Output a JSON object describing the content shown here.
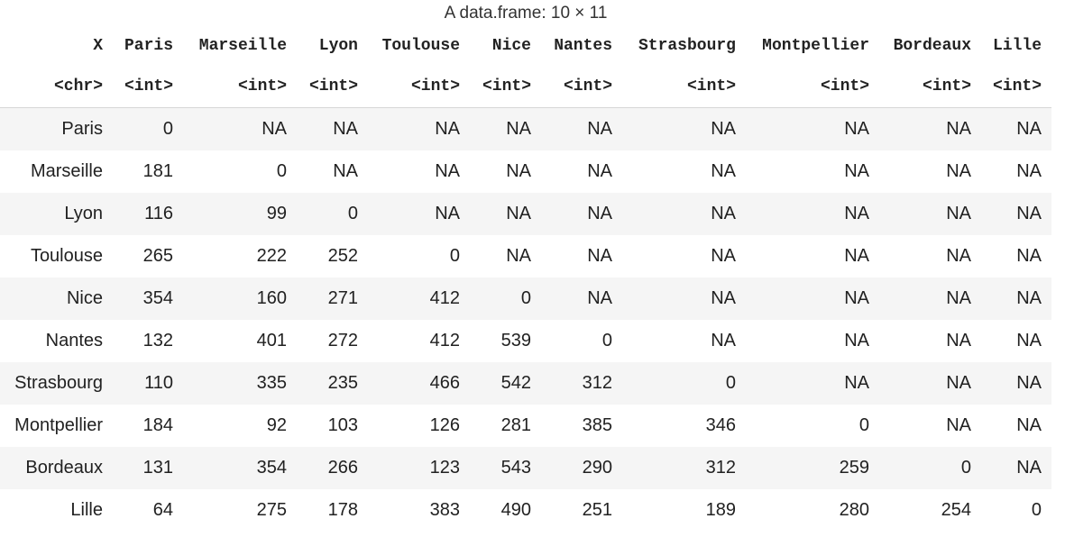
{
  "caption": "A data.frame: 10 × 11",
  "columns": [
    {
      "name": "X",
      "type": "<chr>"
    },
    {
      "name": "Paris",
      "type": "<int>"
    },
    {
      "name": "Marseille",
      "type": "<int>"
    },
    {
      "name": "Lyon",
      "type": "<int>"
    },
    {
      "name": "Toulouse",
      "type": "<int>"
    },
    {
      "name": "Nice",
      "type": "<int>"
    },
    {
      "name": "Nantes",
      "type": "<int>"
    },
    {
      "name": "Strasbourg",
      "type": "<int>"
    },
    {
      "name": "Montpellier",
      "type": "<int>"
    },
    {
      "name": "Bordeaux",
      "type": "<int>"
    },
    {
      "name": "Lille",
      "type": "<int>"
    }
  ],
  "rows": [
    [
      "Paris",
      "0",
      "NA",
      "NA",
      "NA",
      "NA",
      "NA",
      "NA",
      "NA",
      "NA",
      "NA"
    ],
    [
      "Marseille",
      "181",
      "0",
      "NA",
      "NA",
      "NA",
      "NA",
      "NA",
      "NA",
      "NA",
      "NA"
    ],
    [
      "Lyon",
      "116",
      "99",
      "0",
      "NA",
      "NA",
      "NA",
      "NA",
      "NA",
      "NA",
      "NA"
    ],
    [
      "Toulouse",
      "265",
      "222",
      "252",
      "0",
      "NA",
      "NA",
      "NA",
      "NA",
      "NA",
      "NA"
    ],
    [
      "Nice",
      "354",
      "160",
      "271",
      "412",
      "0",
      "NA",
      "NA",
      "NA",
      "NA",
      "NA"
    ],
    [
      "Nantes",
      "132",
      "401",
      "272",
      "412",
      "539",
      "0",
      "NA",
      "NA",
      "NA",
      "NA"
    ],
    [
      "Strasbourg",
      "110",
      "335",
      "235",
      "466",
      "542",
      "312",
      "0",
      "NA",
      "NA",
      "NA"
    ],
    [
      "Montpellier",
      "184",
      "92",
      "103",
      "126",
      "281",
      "385",
      "346",
      "0",
      "NA",
      "NA"
    ],
    [
      "Bordeaux",
      "131",
      "354",
      "266",
      "123",
      "543",
      "290",
      "312",
      "259",
      "0",
      "NA"
    ],
    [
      "Lille",
      "64",
      "275",
      "178",
      "383",
      "490",
      "251",
      "189",
      "280",
      "254",
      "0"
    ]
  ]
}
